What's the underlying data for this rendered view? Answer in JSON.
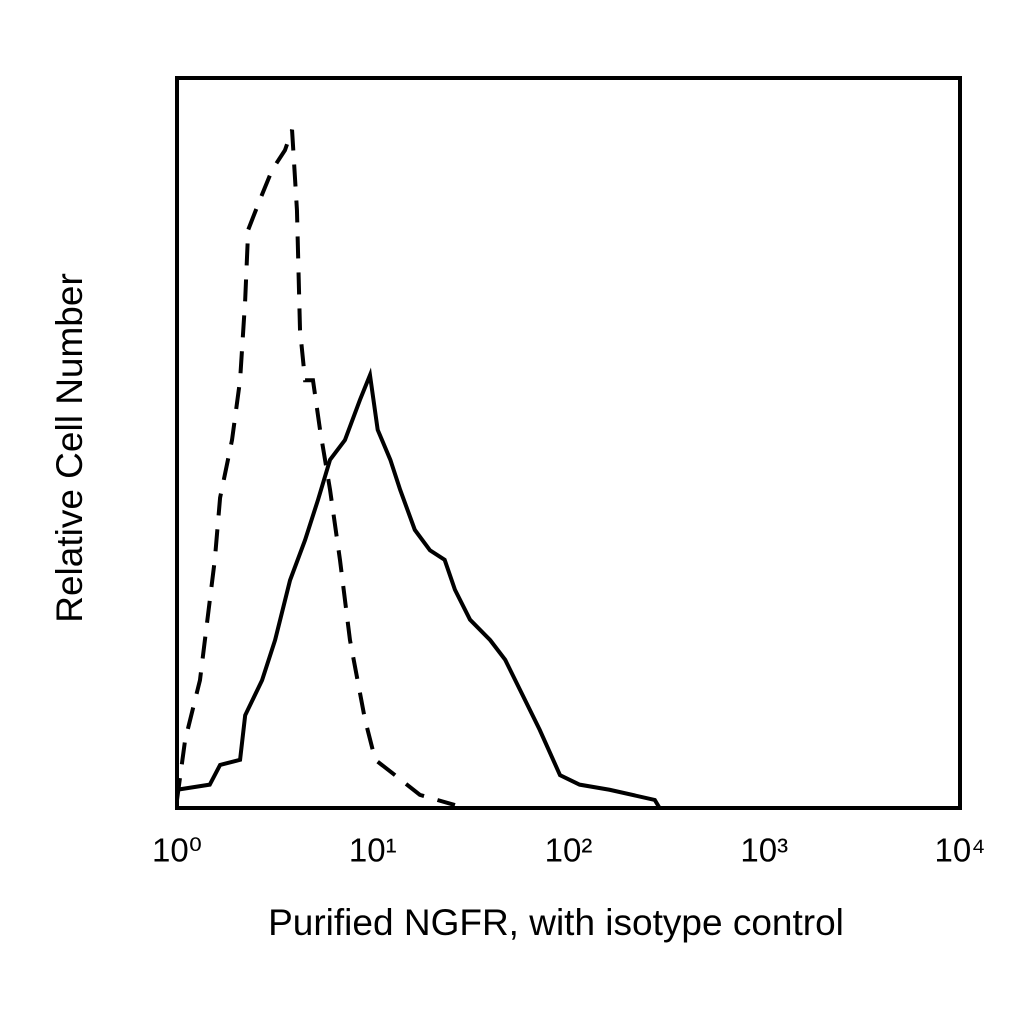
{
  "chart_data": {
    "type": "line",
    "xlabel": "Purified NGFR, with isotype control",
    "ylabel": "Relative Cell Number",
    "xscale": "log",
    "xlim": [
      1,
      10000
    ],
    "xticks": [
      {
        "value": 1,
        "label": "10⁰"
      },
      {
        "value": 10,
        "label": "10¹"
      },
      {
        "value": 100,
        "label": "10²"
      },
      {
        "value": 1000,
        "label": "10³"
      },
      {
        "value": 10000,
        "label": "10⁴"
      }
    ],
    "ylim": [
      0,
      100
    ],
    "grid": false,
    "series": [
      {
        "color": "#000000",
        "dashed": true,
        "x": [
          1.0,
          1.1,
          1.31,
          1.56,
          1.66,
          1.91,
          2.1,
          2.23,
          2.31,
          2.65,
          3.06,
          3.56,
          3.87,
          4.1,
          4.25,
          4.51,
          4.95,
          5.38,
          6.05,
          6.8,
          7.65,
          9.13,
          10.3,
          13.0,
          17.4,
          26.3
        ],
        "values": [
          1.1,
          9.3,
          17.5,
          34,
          42.5,
          50.4,
          58.6,
          69.6,
          79.2,
          83.3,
          87.4,
          90.1,
          92.9,
          81.9,
          65.5,
          58.6,
          58.6,
          51.8,
          43.6,
          34,
          23,
          12.1,
          6.6,
          4.5,
          1.8,
          0.4
        ]
      },
      {
        "color": "#000000",
        "dashed": false,
        "x": [
          1.0,
          1.47,
          1.66,
          2.1,
          2.23,
          2.72,
          3.17,
          3.78,
          4.51,
          5.25,
          6.05,
          7.21,
          8.6,
          9.68,
          10.6,
          12.3,
          13.8,
          16.4,
          19.6,
          23.3,
          26.3,
          31.4,
          39.8,
          47.5,
          56.5,
          71.3,
          90.5,
          114,
          162,
          276,
          292
        ],
        "values": [
          2.5,
          3.2,
          5.9,
          6.6,
          12.7,
          17.5,
          23,
          31.2,
          36.7,
          42.2,
          47.7,
          50.4,
          55.9,
          59.3,
          51.8,
          47.7,
          43.6,
          38.1,
          35.3,
          34,
          29.9,
          25.8,
          23,
          20.3,
          16.2,
          10.7,
          4.5,
          3.2,
          2.5,
          1.1,
          0
        ]
      }
    ]
  }
}
